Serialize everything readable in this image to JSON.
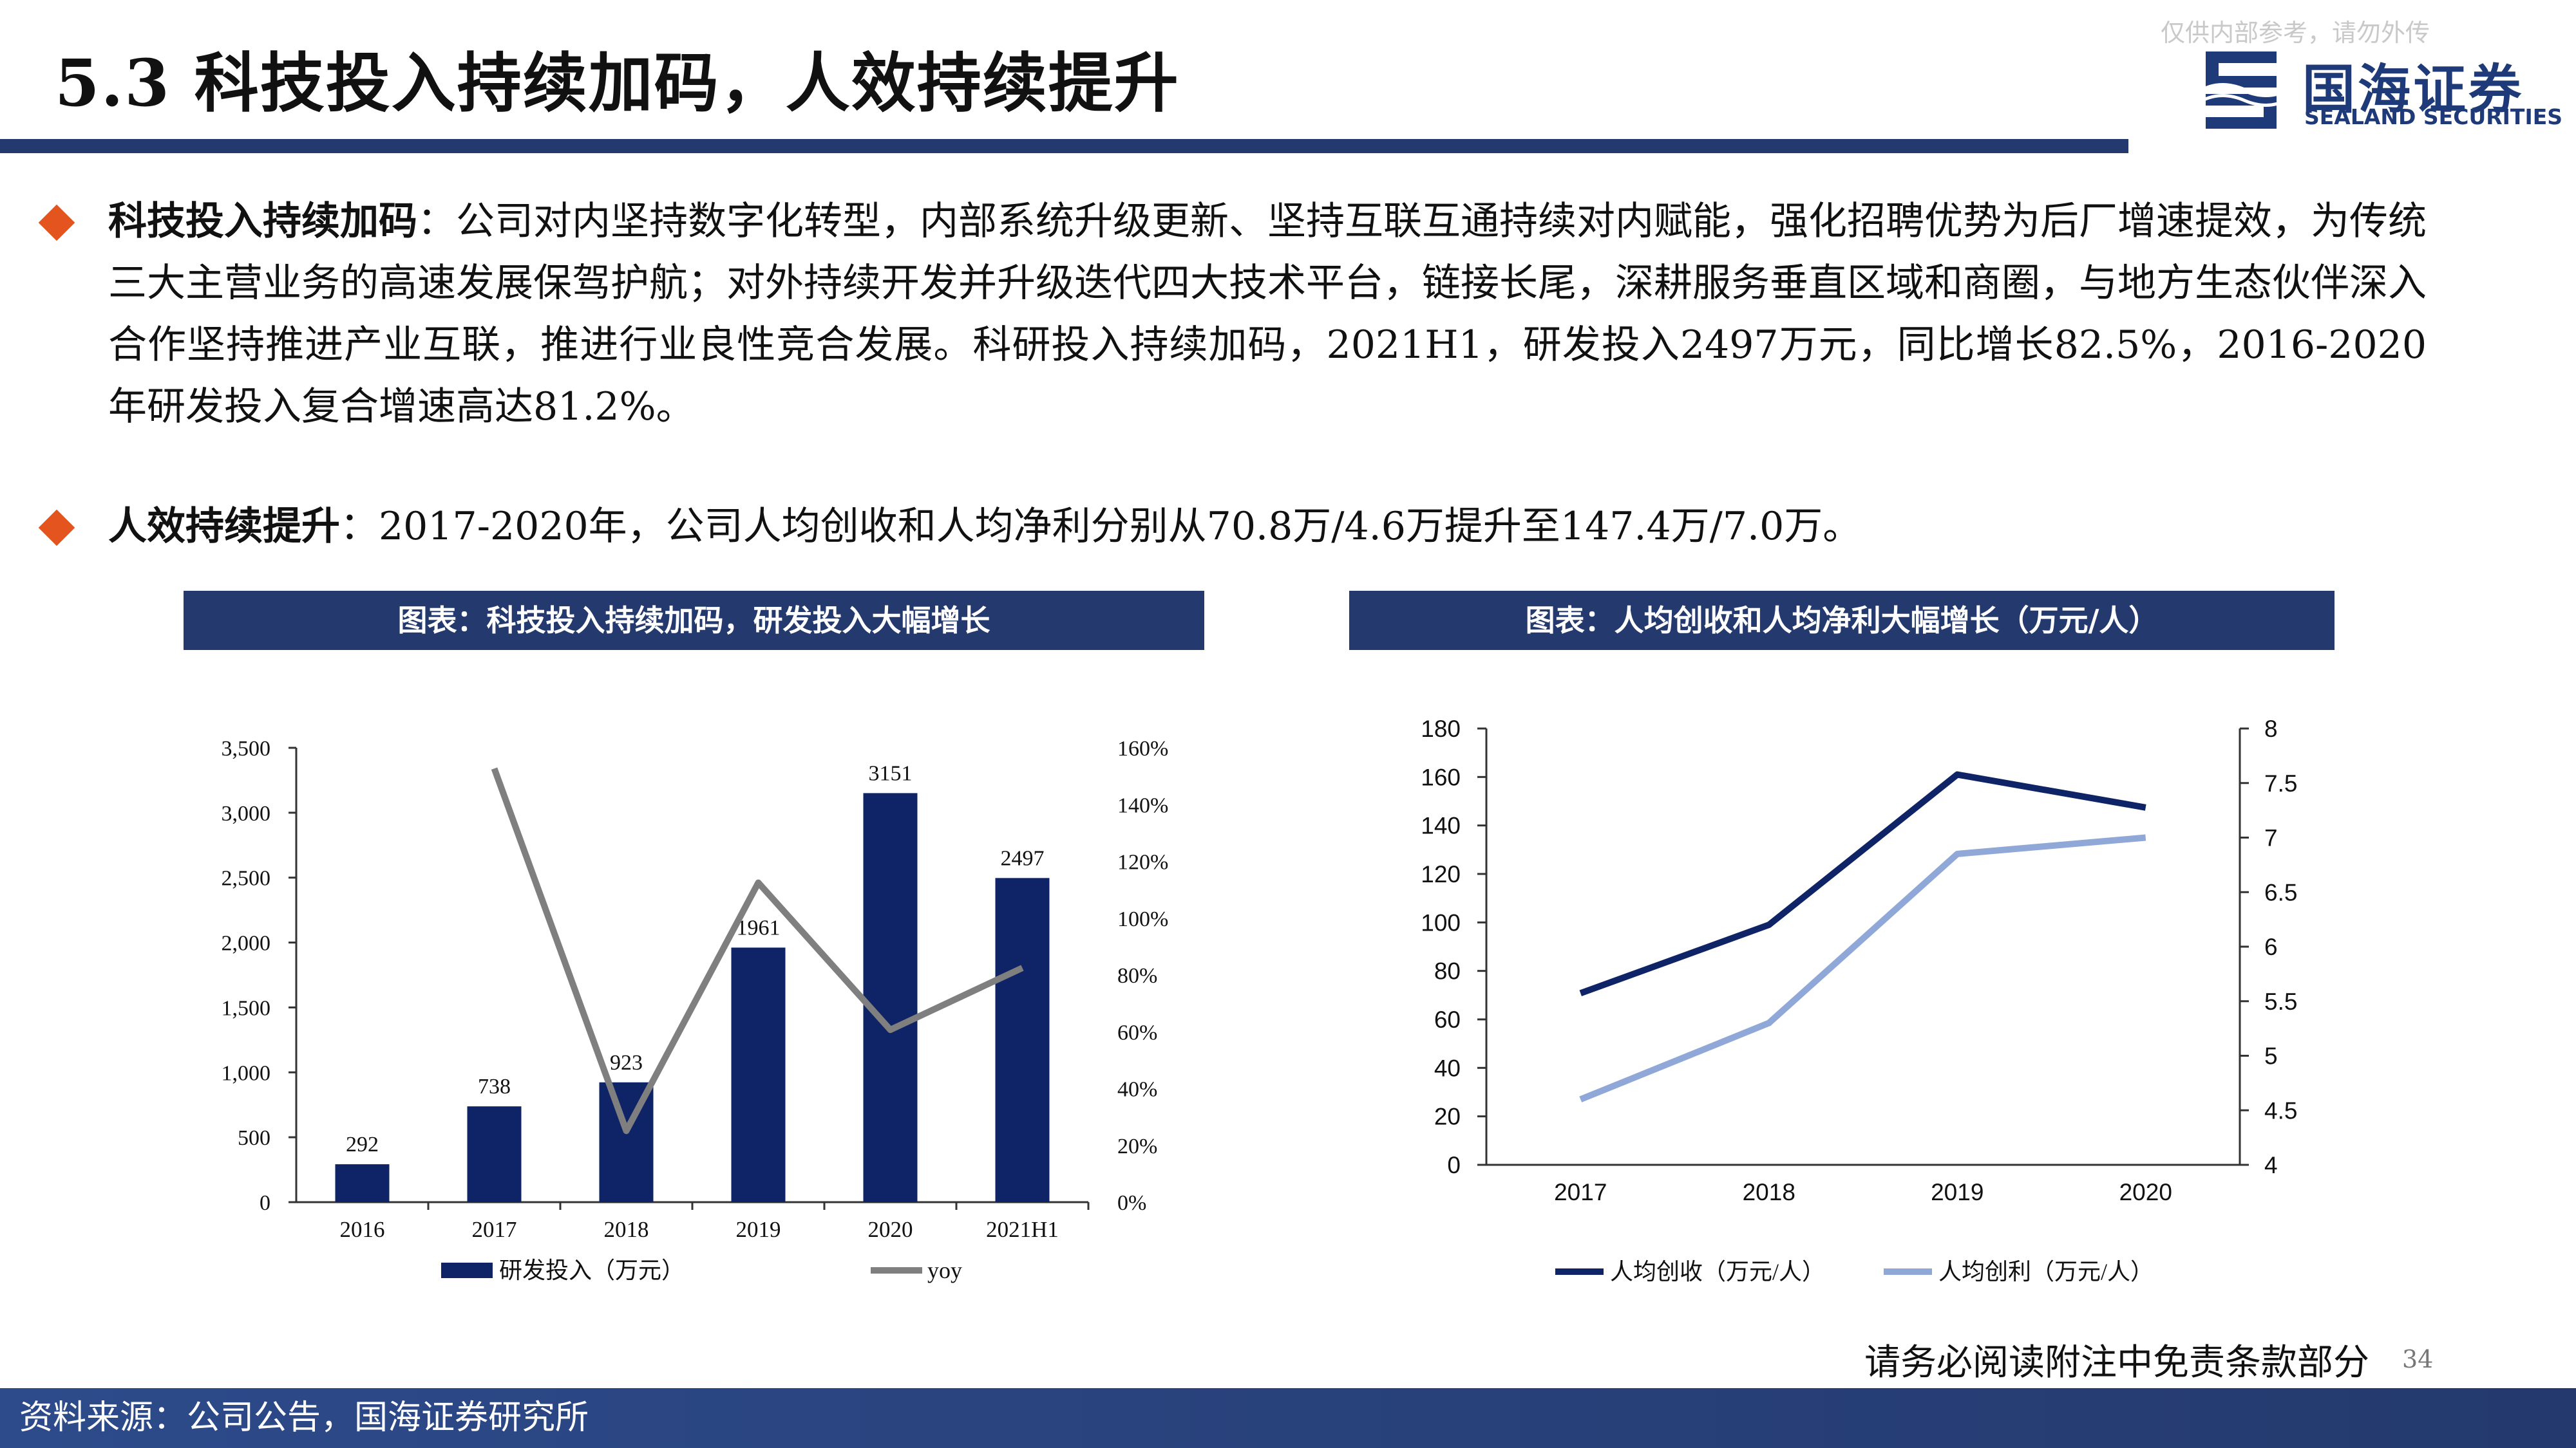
{
  "slide": {
    "title": "5.3 科技投入持续加码，人效持续提升",
    "watermark": "仅供内部参考，请勿外传",
    "logo_cn": "国海证券",
    "logo_en": "SEALAND SECURITIES",
    "footer_note": "请务必阅读附注中免责条款部分",
    "page_number": "34",
    "source": "资料来源：公司公告，国海证券研究所",
    "accent_color": "#243a6e",
    "bullet_color": "#e3541e"
  },
  "bullets": [
    {
      "head": "科技投入持续加码",
      "body": "：公司对内坚持数字化转型，内部系统升级更新、坚持互联互通持续对内赋能，强化招聘优势为后厂增速提效，为传统三大主营业务的高速发展保驾护航；对外持续开发并升级迭代四大技术平台，链接长尾，深耕服务垂直区域和商圈，与地方生态伙伴深入合作坚持推进产业互联，推进行业良性竞合发展。科研投入持续加码，2021H1，研发投入2497万元，同比增长82.5%，2016-2020年研发投入复合增速高达81.2%。"
    },
    {
      "head": "人效持续提升",
      "body": "：2017-2020年，公司人均创收和人均净利分别从70.8万/4.6万提升至147.4万/7.0万。"
    }
  ],
  "chart_data": [
    {
      "type": "bar",
      "title": "图表：科技投入持续加码，研发投入大幅增长",
      "categories": [
        "2016",
        "2017",
        "2018",
        "2019",
        "2020",
        "2021H1"
      ],
      "series": [
        {
          "name": "研发投入（万元）",
          "type": "bar",
          "axis": "left",
          "color": "#0e2466",
          "values": [
            292,
            738,
            923,
            1961,
            3151,
            2497
          ]
        },
        {
          "name": "yoy",
          "type": "line",
          "axis": "right",
          "color": "#7f7f7f",
          "values": [
            null,
            1.527,
            0.251,
            1.125,
            0.607,
            0.825
          ]
        }
      ],
      "ylim": [
        0,
        3500
      ],
      "yticks": [
        "0",
        "500",
        "1,000",
        "1,500",
        "2,000",
        "2,500",
        "3,000",
        "3,500"
      ],
      "y2lim": [
        0,
        1.6
      ],
      "y2ticks": [
        "0%",
        "20%",
        "40%",
        "60%",
        "80%",
        "100%",
        "120%",
        "140%",
        "160%"
      ],
      "data_labels": [
        "292",
        "738",
        "923",
        "1961",
        "3151",
        "2497"
      ],
      "legend": "bottom",
      "grid": false
    },
    {
      "type": "line",
      "title": "图表：人均创收和人均净利大幅增长（万元/人）",
      "categories": [
        "2017",
        "2018",
        "2019",
        "2020"
      ],
      "series": [
        {
          "name": "人均创收（万元/人）",
          "axis": "left",
          "color": "#0e2466",
          "values": [
            70.8,
            99,
            161,
            147.4
          ]
        },
        {
          "name": "人均创利（万元/人）",
          "axis": "right",
          "color": "#8fa8d8",
          "values": [
            4.6,
            5.3,
            6.85,
            7.0
          ]
        }
      ],
      "ylim": [
        0,
        180
      ],
      "yticks": [
        "0",
        "20",
        "40",
        "60",
        "80",
        "100",
        "120",
        "140",
        "160",
        "180"
      ],
      "y2lim": [
        4,
        8
      ],
      "y2ticks": [
        "4",
        "4.5",
        "5",
        "5.5",
        "6",
        "6.5",
        "7",
        "7.5",
        "8"
      ],
      "legend": "bottom",
      "grid": false
    }
  ]
}
